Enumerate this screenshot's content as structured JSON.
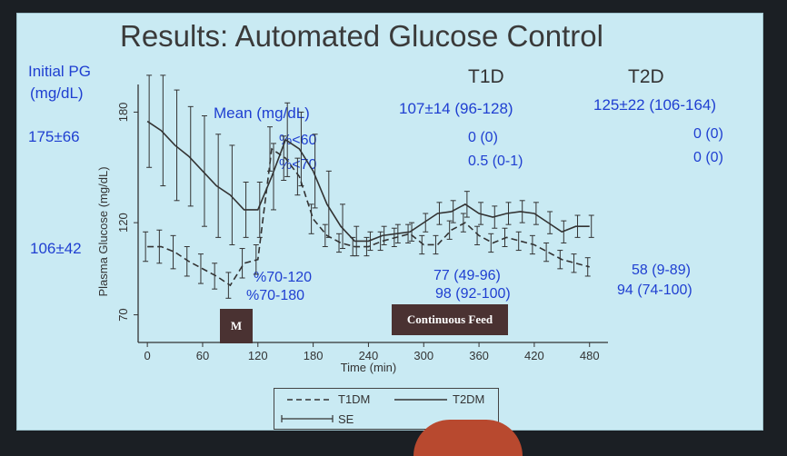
{
  "slide": {
    "title": "Results: Automated Glucose Control",
    "initial_pg_label": "Initial PG\n(mg/dL)",
    "initial_pg_line1": "Initial PG",
    "initial_pg_line2": "(mg/dL)",
    "initial_t2": "175±66",
    "initial_t1": "106±42",
    "col_t1": "T1D",
    "col_t2": "T2D",
    "rows": [
      {
        "label": "Mean (mg/dL)",
        "t1": "107±14 (96-128)",
        "t2": "125±22 (106-164)"
      },
      {
        "label": "%<60",
        "t1": "0 (0)",
        "t2": "0 (0)"
      },
      {
        "label": "%<70",
        "t1": "0.5 (0-1)",
        "t2": "0 (0)"
      },
      {
        "label": "%70-120",
        "t1": "77 (49-96)",
        "t2": "58 (9-89)"
      },
      {
        "label": "%70-180",
        "t1": "98 (92-100)",
        "t2": "94 (74-100)"
      }
    ],
    "badge_meal": "M",
    "badge_feed": "Continuous Feed",
    "legend": {
      "t1": "T1DM",
      "t2": "T2DM",
      "se": "SE"
    }
  },
  "chart_data": {
    "type": "line",
    "xlabel": "Time (min)",
    "ylabel": "Plasma Glucose (mg/dL)",
    "xlim": [
      -10,
      500
    ],
    "ylim": [
      55,
      195
    ],
    "xticks": [
      0,
      60,
      120,
      180,
      240,
      300,
      360,
      420,
      480
    ],
    "yticks": [
      70,
      120,
      180
    ],
    "series": [
      {
        "name": "T2DM",
        "style": "solid",
        "x": [
          0,
          15,
          30,
          45,
          60,
          75,
          90,
          105,
          120,
          135,
          150,
          165,
          180,
          195,
          210,
          225,
          240,
          255,
          270,
          285,
          300,
          315,
          330,
          345,
          360,
          375,
          390,
          405,
          420,
          435,
          450,
          465,
          480
        ],
        "y": [
          175,
          170,
          162,
          156,
          148,
          140,
          135,
          127,
          127,
          145,
          165,
          160,
          148,
          130,
          118,
          110,
          110,
          113,
          114,
          115,
          120,
          125,
          126,
          130,
          125,
          123,
          125,
          126,
          125,
          120,
          115,
          118,
          118
        ],
        "se": [
          25,
          30,
          30,
          27,
          30,
          28,
          27,
          15,
          15,
          18,
          20,
          20,
          20,
          18,
          12,
          8,
          5,
          5,
          5,
          5,
          5,
          6,
          6,
          7,
          6,
          6,
          6,
          6,
          6,
          6,
          6,
          6,
          6
        ]
      },
      {
        "name": "T1DM",
        "style": "dashed",
        "x": [
          0,
          15,
          30,
          45,
          60,
          75,
          90,
          105,
          120,
          135,
          150,
          165,
          180,
          195,
          210,
          225,
          240,
          255,
          270,
          285,
          300,
          315,
          330,
          345,
          360,
          375,
          390,
          405,
          420,
          435,
          450,
          465,
          480
        ],
        "y": [
          107,
          107,
          104,
          99,
          95,
          91,
          86,
          98,
          100,
          160,
          155,
          145,
          122,
          113,
          109,
          107,
          107,
          110,
          112,
          114,
          108,
          108,
          116,
          120,
          113,
          109,
          112,
          110,
          108,
          104,
          100,
          98,
          96
        ],
        "se": [
          8,
          9,
          9,
          8,
          8,
          7,
          7,
          8,
          8,
          12,
          12,
          10,
          8,
          6,
          5,
          5,
          5,
          5,
          5,
          5,
          5,
          5,
          5,
          5,
          5,
          5,
          5,
          5,
          5,
          5,
          5,
          5,
          5
        ]
      }
    ],
    "legend": [
      "T1DM",
      "T2DM",
      "SE"
    ],
    "legend_position": "bottom"
  }
}
